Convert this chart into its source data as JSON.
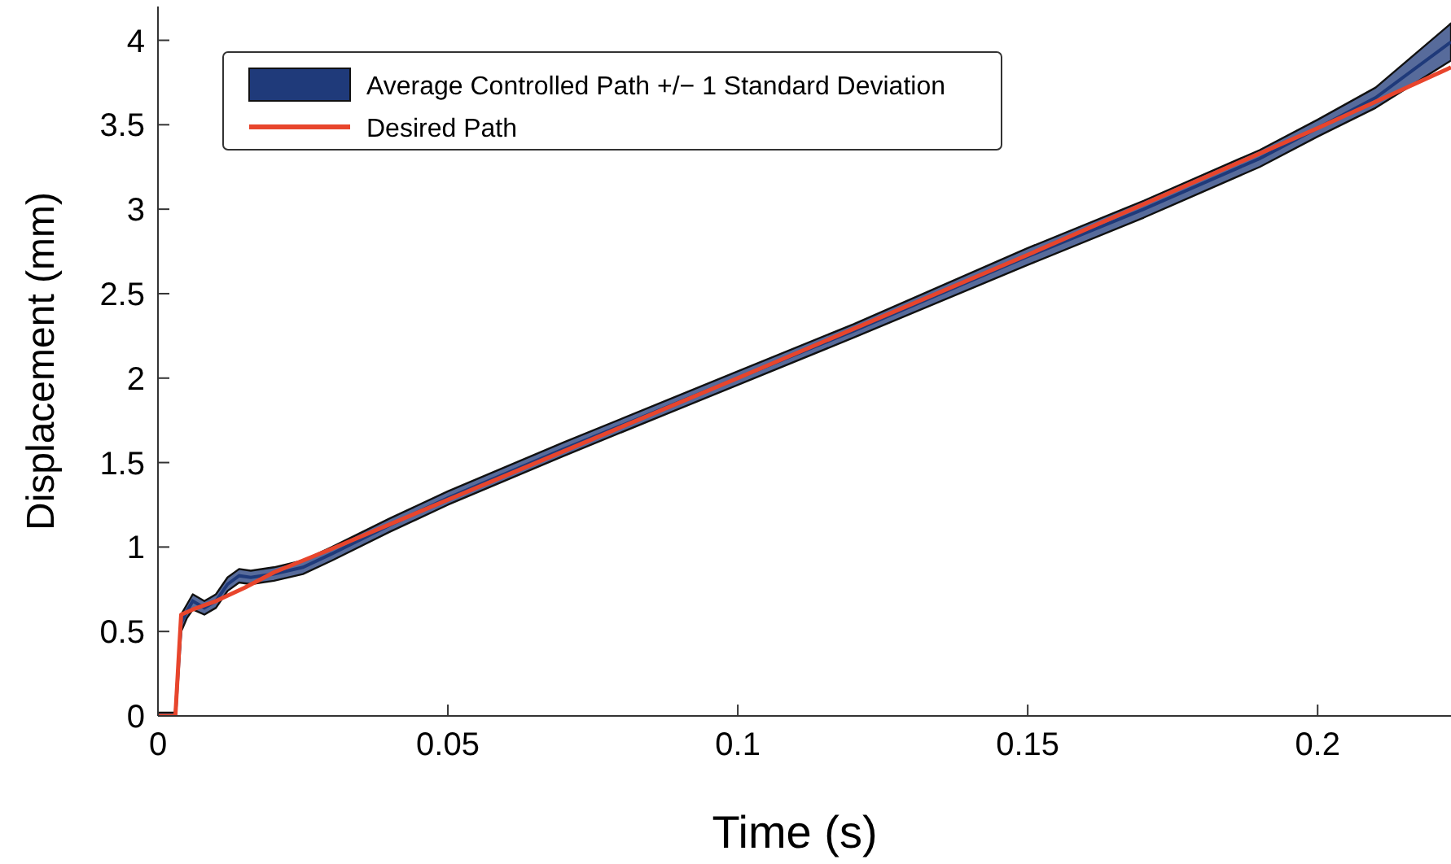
{
  "chart_data": {
    "type": "line",
    "xlabel": "Time (s)",
    "ylabel": "Displacement (mm)",
    "xlim": [
      0,
      0.223
    ],
    "ylim": [
      0,
      4.2
    ],
    "xticks": [
      0,
      0.05,
      0.1,
      0.15,
      0.2
    ],
    "yticks": [
      0,
      0.5,
      1,
      1.5,
      2,
      2.5,
      3,
      3.5,
      4
    ],
    "grid": false,
    "legend": "top left",
    "series": [
      {
        "name": "Average Controlled Path +/− 1 Standard Deviation",
        "color": "#1f3a7a",
        "x": [
          0,
          0.003,
          0.004,
          0.005,
          0.006,
          0.008,
          0.01,
          0.012,
          0.014,
          0.016,
          0.02,
          0.025,
          0.03,
          0.04,
          0.05,
          0.07,
          0.1,
          0.12,
          0.15,
          0.17,
          0.19,
          0.2,
          0.21,
          0.223
        ],
        "values": [
          0,
          0,
          0.55,
          0.62,
          0.68,
          0.64,
          0.68,
          0.78,
          0.83,
          0.82,
          0.84,
          0.88,
          0.96,
          1.13,
          1.29,
          1.58,
          2.0,
          2.28,
          2.72,
          3.0,
          3.3,
          3.48,
          3.66,
          3.99
        ],
        "lower": [
          0,
          0,
          0.5,
          0.58,
          0.63,
          0.6,
          0.64,
          0.74,
          0.79,
          0.78,
          0.8,
          0.84,
          0.92,
          1.09,
          1.25,
          1.54,
          1.96,
          2.24,
          2.67,
          2.95,
          3.25,
          3.43,
          3.6,
          3.88
        ],
        "upper": [
          0.02,
          0.02,
          0.6,
          0.66,
          0.72,
          0.68,
          0.72,
          0.82,
          0.87,
          0.86,
          0.88,
          0.92,
          1.0,
          1.17,
          1.33,
          1.62,
          2.04,
          2.32,
          2.77,
          3.05,
          3.35,
          3.53,
          3.72,
          4.1
        ]
      },
      {
        "name": "Desired Path",
        "color": "#e8452c",
        "x": [
          0,
          0.003,
          0.0035,
          0.004,
          0.006,
          0.01,
          0.015,
          0.02,
          0.03,
          0.05,
          0.1,
          0.15,
          0.2,
          0.223
        ],
        "values": [
          0,
          0,
          0.3,
          0.6,
          0.63,
          0.68,
          0.76,
          0.85,
          0.99,
          1.28,
          2.0,
          2.73,
          3.48,
          3.84
        ]
      }
    ]
  }
}
